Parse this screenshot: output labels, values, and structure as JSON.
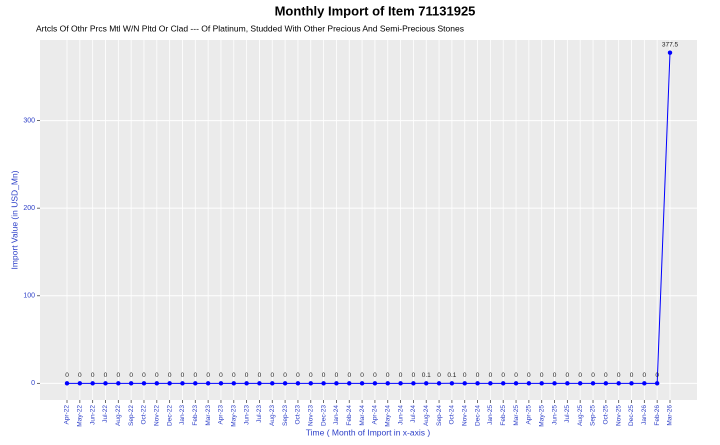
{
  "chart_data": {
    "type": "line",
    "title": "Monthly Import of Item 71131925",
    "subtitle": "Artcls Of Othr Prcs Mtl W/N Pltd Or Clad --- Of Platinum, Studded With Other Precious And Semi-Precious Stones",
    "x_label": "Time ( Month of Import in x-axis )",
    "y_label": "Import  Value (in USD_Mn)",
    "categories": [
      "Apr-22",
      "May-22",
      "Jun-22",
      "Jul-22",
      "Aug-22",
      "Sep-22",
      "Oct-22",
      "Nov-22",
      "Dec-22",
      "Jan-23",
      "Feb-23",
      "Mar-23",
      "Apr-23",
      "May-23",
      "Jun-23",
      "Jul-23",
      "Aug-23",
      "Sep-23",
      "Oct-23",
      "Nov-23",
      "Dec-23",
      "Jan-24",
      "Feb-24",
      "Mar-24",
      "Apr-24",
      "May-24",
      "Jun-24",
      "Jul-24",
      "Aug-24",
      "Sep-24",
      "Oct-24",
      "Nov-24",
      "Dec-24",
      "Jan-25",
      "Feb-25",
      "Mar-25",
      "Apr-25",
      "May-25",
      "Jun-25",
      "Jul-25",
      "Aug-25",
      "Sep-25",
      "Oct-25",
      "Nov-25",
      "Dec-25",
      "Jan-26",
      "Feb-26",
      "Mar-26"
    ],
    "series": [
      {
        "name": "Import Value",
        "color": "#0000ff",
        "values": [
          0,
          0,
          0,
          0,
          0,
          0,
          0,
          0,
          0,
          0,
          0,
          0,
          0,
          0,
          0,
          0,
          0,
          0,
          0,
          0,
          0,
          0,
          0,
          0,
          0,
          0,
          0,
          0,
          0.1,
          0,
          0.1,
          0,
          0,
          0,
          0,
          0,
          0,
          0,
          0,
          0,
          0,
          0,
          0,
          0,
          0,
          0,
          0,
          377.5
        ]
      }
    ],
    "ylim": [
      -19,
      392
    ],
    "yticks": [
      0,
      100,
      200,
      300
    ],
    "grid": true
  }
}
